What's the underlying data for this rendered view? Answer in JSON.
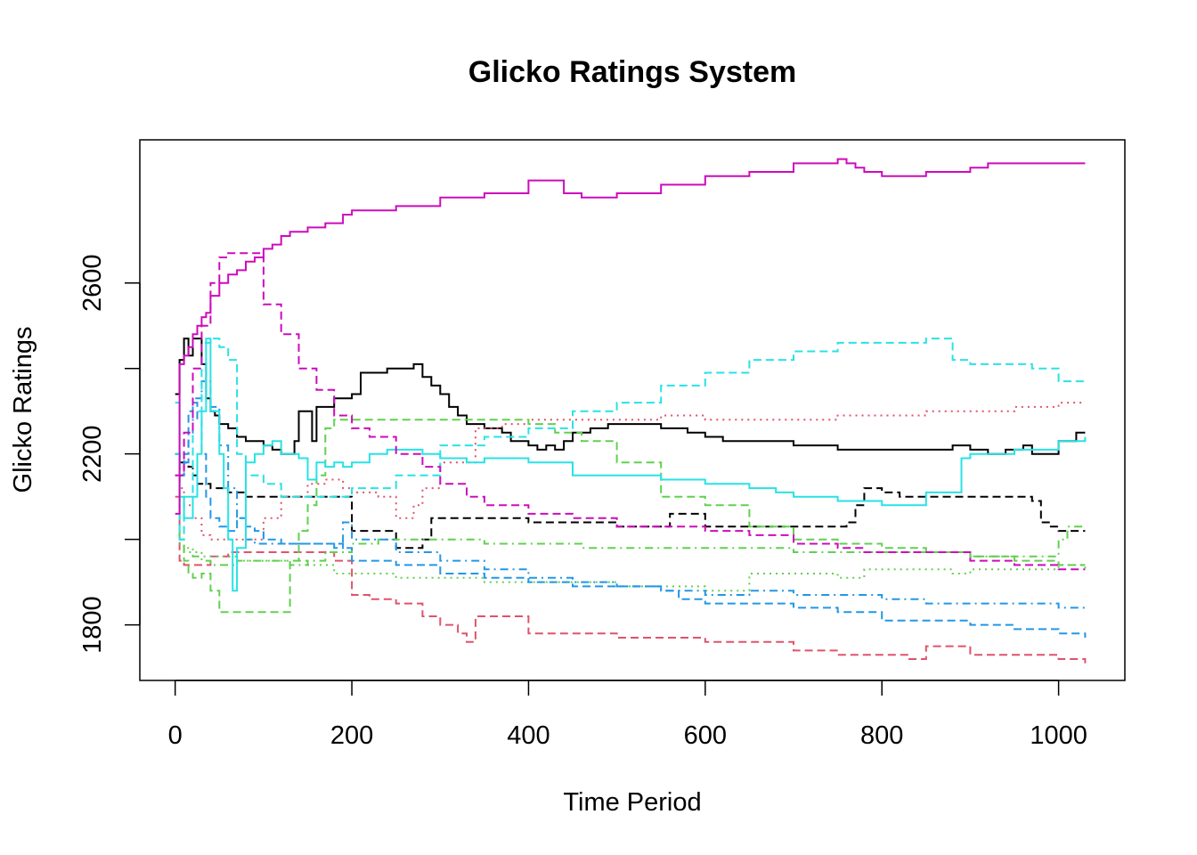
{
  "chart_data": {
    "type": "line",
    "title": "Glicko  Ratings System",
    "xlabel": "Time Period",
    "ylabel": "Glicko  Ratings",
    "xlim": [
      -40,
      1075
    ],
    "ylim": [
      1670,
      2935
    ],
    "xticks": [
      0,
      200,
      400,
      600,
      800,
      1000
    ],
    "yticks": [
      1800,
      2200,
      2600
    ],
    "grid": false,
    "legend": "none",
    "series": [
      {
        "color": "#000000",
        "dash": "solid",
        "x": [
          0,
          5,
          5,
          10,
          10,
          15,
          15,
          20,
          25,
          30,
          35,
          40,
          45,
          50,
          60,
          70,
          80,
          90,
          100,
          110,
          120,
          130,
          135,
          140,
          150,
          155,
          160,
          170,
          180,
          190,
          200,
          210,
          220,
          230,
          240,
          260,
          270,
          280,
          290,
          300,
          310,
          320,
          330,
          350,
          370,
          380,
          400,
          410,
          420,
          430,
          440,
          450,
          470,
          490,
          520,
          550,
          580,
          600,
          620,
          650,
          700,
          720,
          750,
          800,
          850,
          880,
          900,
          920,
          940,
          960,
          970,
          980,
          1000,
          1020,
          1030
        ],
        "y": [
          2340,
          2340,
          2420,
          2420,
          2470,
          2470,
          2430,
          2470,
          2470,
          2410,
          2330,
          2300,
          2290,
          2270,
          2260,
          2240,
          2230,
          2230,
          2220,
          2210,
          2200,
          2200,
          2230,
          2300,
          2300,
          2230,
          2310,
          2310,
          2330,
          2330,
          2340,
          2390,
          2390,
          2390,
          2400,
          2400,
          2410,
          2380,
          2360,
          2340,
          2310,
          2290,
          2270,
          2260,
          2250,
          2230,
          2220,
          2210,
          2220,
          2210,
          2230,
          2250,
          2260,
          2270,
          2270,
          2260,
          2250,
          2240,
          2230,
          2230,
          2220,
          2220,
          2210,
          2210,
          2210,
          2220,
          2210,
          2200,
          2210,
          2220,
          2200,
          2200,
          2230,
          2250,
          2250
        ]
      },
      {
        "color": "#000000",
        "dash": "dashed",
        "x": [
          0,
          5,
          5,
          10,
          15,
          20,
          25,
          40,
          60,
          80,
          100,
          150,
          200,
          200,
          250,
          250,
          280,
          280,
          290,
          290,
          350,
          400,
          450,
          500,
          530,
          560,
          600,
          650,
          700,
          750,
          760,
          760,
          770,
          770,
          780,
          780,
          800,
          800,
          820,
          820,
          880,
          920,
          970,
          980,
          990,
          1000,
          1030
        ],
        "y": [
          2200,
          2200,
          2180,
          2180,
          2170,
          2150,
          2130,
          2120,
          2110,
          2100,
          2100,
          2100,
          2100,
          2020,
          2020,
          1980,
          1980,
          2000,
          2000,
          2050,
          2050,
          2040,
          2040,
          2030,
          2030,
          2060,
          2030,
          2030,
          2030,
          2030,
          2040,
          2040,
          2080,
          2080,
          2120,
          2120,
          2120,
          2110,
          2110,
          2100,
          2100,
          2100,
          2090,
          2040,
          2030,
          2020,
          2020
        ]
      },
      {
        "color": "#DF536B",
        "dash": "dashed",
        "x": [
          0,
          5,
          10,
          20,
          30,
          40,
          50,
          60,
          80,
          100,
          120,
          150,
          180,
          200,
          220,
          250,
          270,
          280,
          300,
          320,
          330,
          340,
          360,
          400,
          450,
          500,
          550,
          600,
          650,
          700,
          750,
          800,
          830,
          850,
          900,
          950,
          1000,
          1030
        ],
        "y": [
          2100,
          1950,
          1940,
          1940,
          1940,
          1960,
          1960,
          1970,
          1970,
          1970,
          1970,
          1970,
          1950,
          1870,
          1860,
          1850,
          1850,
          1820,
          1800,
          1780,
          1760,
          1820,
          1820,
          1780,
          1780,
          1770,
          1770,
          1760,
          1760,
          1740,
          1730,
          1730,
          1720,
          1750,
          1730,
          1730,
          1720,
          1710
        ]
      },
      {
        "color": "#DF536B",
        "dash": "dotted",
        "x": [
          0,
          5,
          10,
          20,
          30,
          40,
          50,
          60,
          80,
          100,
          120,
          150,
          170,
          190,
          200,
          230,
          250,
          270,
          280,
          300,
          340,
          370,
          400,
          450,
          500,
          550,
          600,
          650,
          700,
          750,
          800,
          850,
          900,
          950,
          1000,
          1030
        ],
        "y": [
          2150,
          2120,
          2080,
          2050,
          2010,
          2000,
          2000,
          2000,
          2000,
          2050,
          2100,
          2130,
          2140,
          2120,
          2110,
          2100,
          2050,
          2080,
          2120,
          2180,
          2260,
          2270,
          2280,
          2280,
          2280,
          2290,
          2280,
          2280,
          2280,
          2290,
          2290,
          2300,
          2300,
          2310,
          2320,
          2320
        ]
      },
      {
        "color": "#61D04F",
        "dash": "dashed",
        "x": [
          0,
          5,
          10,
          15,
          20,
          30,
          40,
          50,
          60,
          80,
          100,
          120,
          130,
          140,
          150,
          160,
          170,
          180,
          200,
          220,
          250,
          300,
          350,
          400,
          430,
          460,
          500,
          550,
          600,
          650,
          700,
          750,
          800,
          850,
          900,
          950,
          1000,
          1030
        ],
        "y": [
          2200,
          2000,
          1950,
          1920,
          1910,
          1920,
          1880,
          1830,
          1830,
          1830,
          1830,
          1830,
          1950,
          2020,
          2080,
          2150,
          2260,
          2280,
          2280,
          2280,
          2280,
          2280,
          2280,
          2270,
          2250,
          2230,
          2180,
          2100,
          2080,
          2030,
          2000,
          1990,
          1980,
          1970,
          1960,
          1950,
          1940,
          1940
        ]
      },
      {
        "color": "#61D04F",
        "dash": "dotdash",
        "x": [
          0,
          5,
          10,
          20,
          30,
          40,
          50,
          70,
          90,
          110,
          130,
          150,
          170,
          200,
          230,
          260,
          300,
          350,
          400,
          420,
          440,
          460,
          480,
          500,
          550,
          600,
          650,
          700,
          750,
          800,
          850,
          900,
          950,
          1000,
          1010,
          1030
        ],
        "y": [
          2200,
          1990,
          1970,
          1960,
          1950,
          1940,
          1940,
          1950,
          1950,
          1950,
          1940,
          1950,
          1970,
          1990,
          2000,
          2000,
          2000,
          1990,
          1990,
          1990,
          1990,
          1980,
          1980,
          1980,
          1980,
          1980,
          1980,
          1970,
          1970,
          1970,
          1970,
          1960,
          1960,
          2000,
          2030,
          2030
        ]
      },
      {
        "color": "#61D04F",
        "dash": "dotted",
        "x": [
          0,
          5,
          10,
          20,
          30,
          50,
          70,
          100,
          130,
          150,
          180,
          200,
          250,
          300,
          350,
          400,
          450,
          500,
          550,
          600,
          650,
          700,
          750,
          780,
          800,
          850,
          880,
          900,
          950,
          1000,
          1030
        ],
        "y": [
          2200,
          2000,
          1980,
          1970,
          1960,
          1960,
          1950,
          1950,
          1950,
          1940,
          1920,
          1920,
          1910,
          1910,
          1900,
          1900,
          1900,
          1890,
          1890,
          1880,
          1920,
          1920,
          1910,
          1930,
          1930,
          1930,
          1920,
          1930,
          1930,
          1940,
          1930
        ]
      },
      {
        "color": "#2297E6",
        "dash": "dashed",
        "x": [
          0,
          5,
          10,
          15,
          20,
          25,
          30,
          35,
          40,
          50,
          60,
          70,
          80,
          90,
          100,
          120,
          150,
          190,
          200,
          250,
          300,
          350,
          400,
          450,
          500,
          550,
          570,
          600,
          650,
          700,
          750,
          800,
          850,
          900,
          950,
          1000,
          1030
        ],
        "y": [
          2200,
          2150,
          2200,
          2300,
          2320,
          2280,
          2200,
          2100,
          2050,
          2030,
          2020,
          2050,
          2030,
          2020,
          2000,
          1990,
          1990,
          1980,
          1950,
          1940,
          1920,
          1910,
          1900,
          1890,
          1890,
          1880,
          1860,
          1850,
          1850,
          1840,
          1830,
          1810,
          1810,
          1800,
          1790,
          1780,
          1770
        ]
      },
      {
        "color": "#2297E6",
        "dash": "dotdash",
        "x": [
          0,
          5,
          10,
          15,
          20,
          30,
          40,
          50,
          60,
          70,
          80,
          90,
          100,
          150,
          180,
          190,
          200,
          250,
          300,
          350,
          400,
          450,
          500,
          550,
          600,
          650,
          700,
          750,
          800,
          850,
          900,
          950,
          1000,
          1030
        ],
        "y": [
          2200,
          2150,
          2180,
          2250,
          2330,
          2370,
          2310,
          2220,
          2120,
          2050,
          2000,
          1990,
          1990,
          1990,
          1980,
          2040,
          2000,
          1970,
          1950,
          1930,
          1910,
          1900,
          1890,
          1880,
          1870,
          1880,
          1870,
          1870,
          1860,
          1850,
          1850,
          1850,
          1840,
          1840
        ]
      },
      {
        "color": "#28E2E5",
        "dash": "solid",
        "x": [
          0,
          5,
          10,
          15,
          20,
          25,
          30,
          35,
          40,
          50,
          55,
          60,
          65,
          70,
          80,
          90,
          100,
          110,
          120,
          130,
          140,
          150,
          160,
          170,
          180,
          190,
          200,
          220,
          240,
          260,
          280,
          300,
          330,
          350,
          400,
          450,
          500,
          550,
          600,
          650,
          680,
          700,
          750,
          780,
          800,
          850,
          880,
          890,
          900,
          950,
          1000,
          1030
        ],
        "y": [
          2320,
          2100,
          2050,
          2050,
          2100,
          2200,
          2300,
          2470,
          2300,
          2200,
          2120,
          2000,
          1880,
          1980,
          2180,
          2200,
          2220,
          2230,
          2200,
          2200,
          2190,
          2140,
          2180,
          2170,
          2180,
          2170,
          2180,
          2200,
          2210,
          2210,
          2200,
          2190,
          2180,
          2190,
          2180,
          2150,
          2150,
          2140,
          2130,
          2120,
          2110,
          2100,
          2090,
          2090,
          2080,
          2110,
          2110,
          2190,
          2200,
          2210,
          2230,
          2240
        ]
      },
      {
        "color": "#28E2E5",
        "dash": "dashed",
        "x": [
          0,
          5,
          10,
          20,
          30,
          40,
          50,
          60,
          70,
          80,
          100,
          120,
          150,
          180,
          200,
          250,
          300,
          350,
          400,
          450,
          500,
          550,
          600,
          650,
          700,
          750,
          800,
          850,
          870,
          880,
          900,
          920,
          950,
          970,
          1000,
          1010,
          1030
        ],
        "y": [
          2200,
          2000,
          2100,
          2300,
          2460,
          2470,
          2450,
          2420,
          2200,
          2150,
          2130,
          2100,
          2100,
          2100,
          2120,
          2150,
          2220,
          2240,
          2260,
          2300,
          2320,
          2360,
          2390,
          2420,
          2440,
          2460,
          2460,
          2470,
          2470,
          2420,
          2410,
          2410,
          2410,
          2400,
          2370,
          2370,
          2370
        ]
      },
      {
        "color": "#CD0BBC",
        "dash": "solid",
        "x": [
          0,
          5,
          10,
          15,
          20,
          25,
          30,
          35,
          40,
          50,
          60,
          70,
          80,
          90,
          100,
          110,
          120,
          130,
          150,
          170,
          190,
          200,
          250,
          300,
          350,
          400,
          430,
          440,
          450,
          460,
          500,
          550,
          600,
          650,
          700,
          750,
          760,
          770,
          780,
          800,
          850,
          900,
          920,
          950,
          1000,
          1030
        ],
        "y": [
          2060,
          2410,
          2430,
          2450,
          2480,
          2500,
          2520,
          2530,
          2570,
          2600,
          2620,
          2630,
          2650,
          2660,
          2680,
          2690,
          2710,
          2720,
          2730,
          2740,
          2760,
          2770,
          2780,
          2800,
          2810,
          2840,
          2840,
          2810,
          2810,
          2800,
          2810,
          2830,
          2850,
          2860,
          2880,
          2890,
          2880,
          2870,
          2860,
          2850,
          2860,
          2870,
          2880,
          2880,
          2880,
          2880
        ]
      },
      {
        "color": "#CD0BBC",
        "dash": "dashed",
        "x": [
          0,
          10,
          20,
          30,
          40,
          50,
          60,
          80,
          100,
          120,
          140,
          160,
          180,
          200,
          220,
          250,
          280,
          300,
          330,
          350,
          400,
          450,
          500,
          550,
          600,
          650,
          700,
          750,
          780,
          800,
          850,
          900,
          950,
          1000,
          1030
        ],
        "y": [
          2150,
          2250,
          2400,
          2500,
          2600,
          2660,
          2670,
          2670,
          2550,
          2480,
          2400,
          2350,
          2290,
          2260,
          2240,
          2200,
          2170,
          2130,
          2100,
          2080,
          2060,
          2050,
          2030,
          2030,
          2020,
          2010,
          1990,
          1980,
          1970,
          1970,
          1970,
          1950,
          1940,
          1930,
          1930
        ]
      }
    ]
  }
}
